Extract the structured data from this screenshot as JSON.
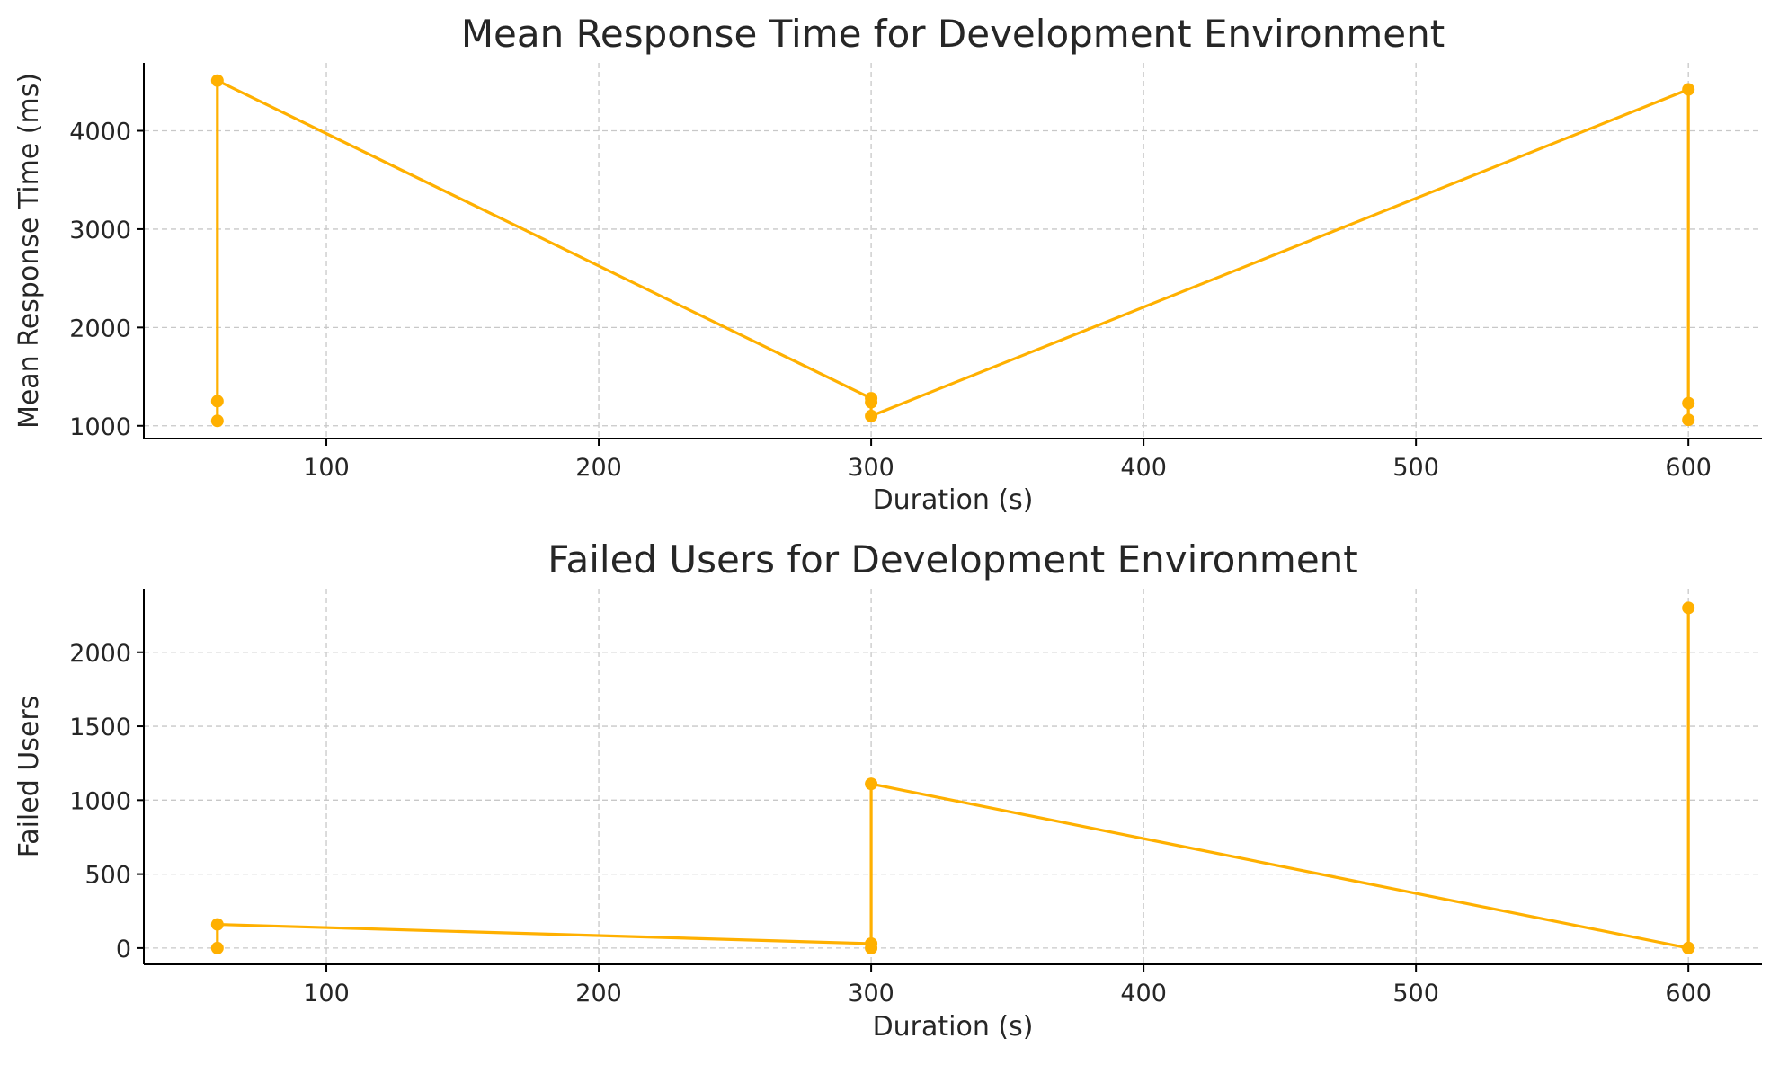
{
  "chart_data": [
    {
      "type": "line",
      "title": "Mean Response Time for Development Environment",
      "xlabel": "Duration (s)",
      "ylabel": "Mean Response Time (ms)",
      "xlim": [
        33,
        627
      ],
      "ylim": [
        870,
        4690
      ],
      "xticks": [
        100,
        200,
        300,
        400,
        500,
        600
      ],
      "yticks": [
        1000,
        2000,
        3000,
        4000
      ],
      "grid": true,
      "color": "#FFB000",
      "series": [
        {
          "x": [
            60,
            60,
            60,
            300,
            300,
            300,
            600,
            600,
            600
          ],
          "values": [
            1050,
            1250,
            4510,
            1280,
            1240,
            1100,
            4420,
            1230,
            1060
          ]
        }
      ]
    },
    {
      "type": "line",
      "title": "Failed Users for Development Environment",
      "xlabel": "Duration (s)",
      "ylabel": "Failed Users",
      "xlim": [
        33,
        627
      ],
      "ylim": [
        -110,
        2430
      ],
      "xticks": [
        100,
        200,
        300,
        400,
        500,
        600
      ],
      "yticks": [
        0,
        500,
        1000,
        1500,
        2000
      ],
      "grid": true,
      "color": "#FFB000",
      "series": [
        {
          "x": [
            60,
            60,
            300,
            300,
            300,
            600,
            600,
            600
          ],
          "values": [
            0,
            160,
            30,
            0,
            1110,
            0,
            0,
            2300
          ]
        }
      ]
    }
  ]
}
